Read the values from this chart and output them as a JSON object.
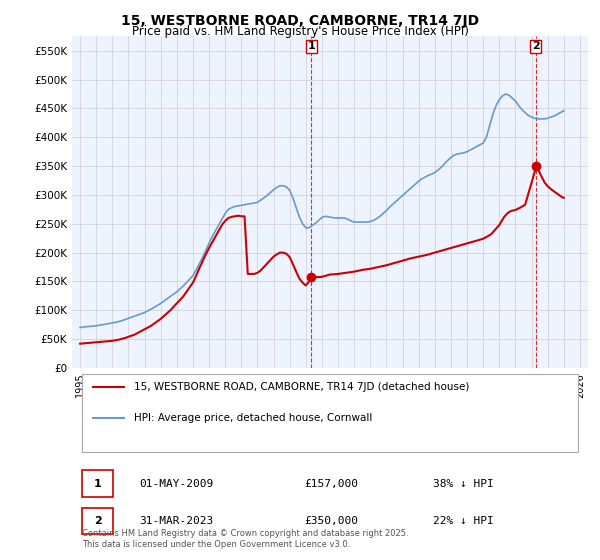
{
  "title": "15, WESTBORNE ROAD, CAMBORNE, TR14 7JD",
  "subtitle": "Price paid vs. HM Land Registry's House Price Index (HPI)",
  "legend_line1": "15, WESTBORNE ROAD, CAMBORNE, TR14 7JD (detached house)",
  "legend_line2": "HPI: Average price, detached house, Cornwall",
  "annotation1_num": "1",
  "annotation1_date": "01-MAY-2009",
  "annotation1_price": "£157,000",
  "annotation1_hpi": "38% ↓ HPI",
  "annotation2_num": "2",
  "annotation2_date": "31-MAR-2023",
  "annotation2_price": "£350,000",
  "annotation2_hpi": "22% ↓ HPI",
  "footer": "Contains HM Land Registry data © Crown copyright and database right 2025.\nThis data is licensed under the Open Government Licence v3.0.",
  "line_color_red": "#cc0000",
  "line_color_blue": "#6699cc",
  "vline_color": "#cc0000",
  "dot_color_red": "#cc0000",
  "grid_color": "#cccccc",
  "bg_color": "#ddeeff",
  "plot_bg": "#eef4ff",
  "ylim": [
    0,
    575000
  ],
  "yticks": [
    0,
    50000,
    100000,
    150000,
    200000,
    250000,
    300000,
    350000,
    400000,
    450000,
    500000,
    550000
  ],
  "ytick_labels": [
    "£0",
    "£50K",
    "£100K",
    "£150K",
    "£200K",
    "£250K",
    "£300K",
    "£350K",
    "£400K",
    "£450K",
    "£500K",
    "£550K"
  ],
  "xlim_start": 1994.5,
  "xlim_end": 2026.5,
  "xticks": [
    1995,
    1996,
    1997,
    1998,
    1999,
    2000,
    2001,
    2002,
    2003,
    2004,
    2005,
    2006,
    2007,
    2008,
    2009,
    2010,
    2011,
    2012,
    2013,
    2014,
    2015,
    2016,
    2017,
    2018,
    2019,
    2020,
    2021,
    2022,
    2023,
    2024,
    2025,
    2026
  ],
  "sale1_x": 2009.33,
  "sale1_y": 157000,
  "sale2_x": 2023.25,
  "sale2_y": 350000,
  "hpi_years": [
    1995.0,
    1995.1,
    1995.2,
    1995.3,
    1995.4,
    1995.5,
    1995.6,
    1995.7,
    1995.8,
    1995.9,
    1996.0,
    1996.1,
    1996.2,
    1996.3,
    1996.4,
    1996.5,
    1996.6,
    1996.7,
    1996.8,
    1996.9,
    1997.0,
    1997.2,
    1997.4,
    1997.6,
    1997.8,
    1998.0,
    1998.2,
    1998.4,
    1998.6,
    1998.8,
    1999.0,
    1999.2,
    1999.4,
    1999.6,
    1999.8,
    2000.0,
    2000.2,
    2000.4,
    2000.6,
    2000.8,
    2001.0,
    2001.2,
    2001.4,
    2001.6,
    2001.8,
    2002.0,
    2002.2,
    2002.4,
    2002.6,
    2002.8,
    2003.0,
    2003.2,
    2003.4,
    2003.6,
    2003.8,
    2004.0,
    2004.2,
    2004.4,
    2004.6,
    2004.8,
    2005.0,
    2005.2,
    2005.4,
    2005.6,
    2005.8,
    2006.0,
    2006.2,
    2006.4,
    2006.6,
    2006.8,
    2007.0,
    2007.2,
    2007.4,
    2007.6,
    2007.8,
    2008.0,
    2008.2,
    2008.4,
    2008.6,
    2008.8,
    2009.0,
    2009.2,
    2009.4,
    2009.6,
    2009.8,
    2010.0,
    2010.2,
    2010.4,
    2010.6,
    2010.8,
    2011.0,
    2011.2,
    2011.4,
    2011.6,
    2011.8,
    2012.0,
    2012.2,
    2012.4,
    2012.6,
    2012.8,
    2013.0,
    2013.2,
    2013.4,
    2013.6,
    2013.8,
    2014.0,
    2014.2,
    2014.4,
    2014.6,
    2014.8,
    2015.0,
    2015.2,
    2015.4,
    2015.6,
    2015.8,
    2016.0,
    2016.2,
    2016.4,
    2016.6,
    2016.8,
    2017.0,
    2017.2,
    2017.4,
    2017.6,
    2017.8,
    2018.0,
    2018.2,
    2018.4,
    2018.6,
    2018.8,
    2019.0,
    2019.2,
    2019.4,
    2019.6,
    2019.8,
    2020.0,
    2020.2,
    2020.4,
    2020.6,
    2020.8,
    2021.0,
    2021.2,
    2021.4,
    2021.6,
    2021.8,
    2022.0,
    2022.2,
    2022.4,
    2022.6,
    2022.8,
    2023.0,
    2023.2,
    2023.4,
    2023.6,
    2023.8,
    2024.0,
    2024.2,
    2024.4,
    2024.6,
    2024.8,
    2025.0
  ],
  "hpi_values": [
    70000,
    70500,
    71000,
    71200,
    71500,
    71800,
    72000,
    72300,
    72500,
    72800,
    73000,
    73500,
    74000,
    74500,
    75000,
    75500,
    76000,
    76500,
    77000,
    77500,
    78000,
    79000,
    80500,
    82000,
    84000,
    86000,
    88000,
    90000,
    92000,
    94000,
    96000,
    99000,
    102000,
    105000,
    108500,
    112000,
    116000,
    120000,
    124000,
    128000,
    132000,
    137000,
    142000,
    148000,
    154000,
    160000,
    170000,
    181000,
    192000,
    204000,
    216000,
    228000,
    238000,
    248000,
    258000,
    268000,
    275000,
    278000,
    280000,
    281000,
    282000,
    283000,
    284000,
    285000,
    286000,
    287000,
    291000,
    295000,
    299000,
    304000,
    309000,
    313000,
    316000,
    316000,
    314000,
    308000,
    295000,
    278000,
    262000,
    250000,
    243000,
    243000,
    247000,
    251000,
    256000,
    261000,
    263000,
    262000,
    261000,
    260000,
    260000,
    260000,
    260000,
    258000,
    255000,
    253000,
    253000,
    253000,
    253000,
    253000,
    254000,
    256000,
    259000,
    263000,
    268000,
    273000,
    279000,
    284000,
    289000,
    294000,
    299000,
    304000,
    309000,
    314000,
    319000,
    324000,
    328000,
    331000,
    334000,
    336000,
    339000,
    343000,
    348000,
    354000,
    360000,
    365000,
    369000,
    371000,
    372000,
    373000,
    375000,
    378000,
    381000,
    384000,
    387000,
    390000,
    400000,
    420000,
    440000,
    455000,
    465000,
    472000,
    475000,
    473000,
    468000,
    463000,
    455000,
    448000,
    443000,
    438000,
    435000,
    433000,
    432000,
    432000,
    432000,
    433000,
    435000,
    437000,
    440000,
    443000,
    446000
  ],
  "red_years": [
    1995.0,
    1995.2,
    1995.4,
    1995.6,
    1995.8,
    1996.0,
    1996.2,
    1996.4,
    1996.6,
    1996.8,
    1997.0,
    1997.2,
    1997.4,
    1997.6,
    1997.8,
    1998.0,
    1998.2,
    1998.4,
    1998.6,
    1998.8,
    1999.0,
    1999.2,
    1999.4,
    1999.6,
    1999.8,
    2000.0,
    2000.2,
    2000.4,
    2000.6,
    2000.8,
    2001.0,
    2001.2,
    2001.4,
    2001.6,
    2001.8,
    2002.0,
    2002.2,
    2002.4,
    2002.6,
    2002.8,
    2003.0,
    2003.2,
    2003.4,
    2003.6,
    2003.8,
    2004.0,
    2004.2,
    2004.4,
    2004.6,
    2004.8,
    2005.0,
    2005.2,
    2005.4,
    2005.6,
    2005.8,
    2006.0,
    2006.2,
    2006.4,
    2006.6,
    2006.8,
    2007.0,
    2007.2,
    2007.4,
    2007.6,
    2007.8,
    2008.0,
    2008.2,
    2008.4,
    2008.6,
    2008.8,
    2009.0,
    2009.4,
    2010.0,
    2010.5,
    2011.0,
    2011.5,
    2012.0,
    2012.5,
    2013.0,
    2013.5,
    2014.0,
    2014.5,
    2015.0,
    2015.5,
    2016.0,
    2016.5,
    2017.0,
    2017.5,
    2018.0,
    2018.5,
    2019.0,
    2019.5,
    2020.0,
    2020.5,
    2021.0,
    2021.3,
    2021.5,
    2021.7,
    2022.0,
    2022.3,
    2022.6,
    2023.3,
    2023.8,
    2024.0,
    2024.3,
    2024.6,
    2024.9,
    2025.0
  ],
  "red_values": [
    42000,
    42500,
    43000,
    43500,
    44000,
    44500,
    45000,
    45500,
    46000,
    46500,
    47000,
    48000,
    49000,
    50500,
    52000,
    54000,
    56000,
    58000,
    61000,
    64000,
    67000,
    70000,
    73000,
    77000,
    81000,
    85000,
    90000,
    95000,
    100000,
    106000,
    112000,
    118000,
    124000,
    132000,
    140000,
    148000,
    160000,
    173000,
    185000,
    197000,
    208000,
    218000,
    228000,
    238000,
    248000,
    255000,
    260000,
    262000,
    263000,
    264000,
    263000,
    263000,
    163000,
    163000,
    163000,
    165000,
    169000,
    175000,
    181000,
    187000,
    193000,
    197000,
    200000,
    200000,
    198000,
    192000,
    180000,
    167000,
    155000,
    148000,
    143000,
    157000,
    158000,
    162000,
    163000,
    165000,
    167000,
    170000,
    172000,
    175000,
    178000,
    182000,
    186000,
    190000,
    193000,
    196000,
    200000,
    204000,
    208000,
    212000,
    216000,
    220000,
    224000,
    232000,
    248000,
    262000,
    268000,
    272000,
    274000,
    278000,
    283000,
    350000,
    322000,
    315000,
    308000,
    302000,
    296000,
    295000
  ]
}
